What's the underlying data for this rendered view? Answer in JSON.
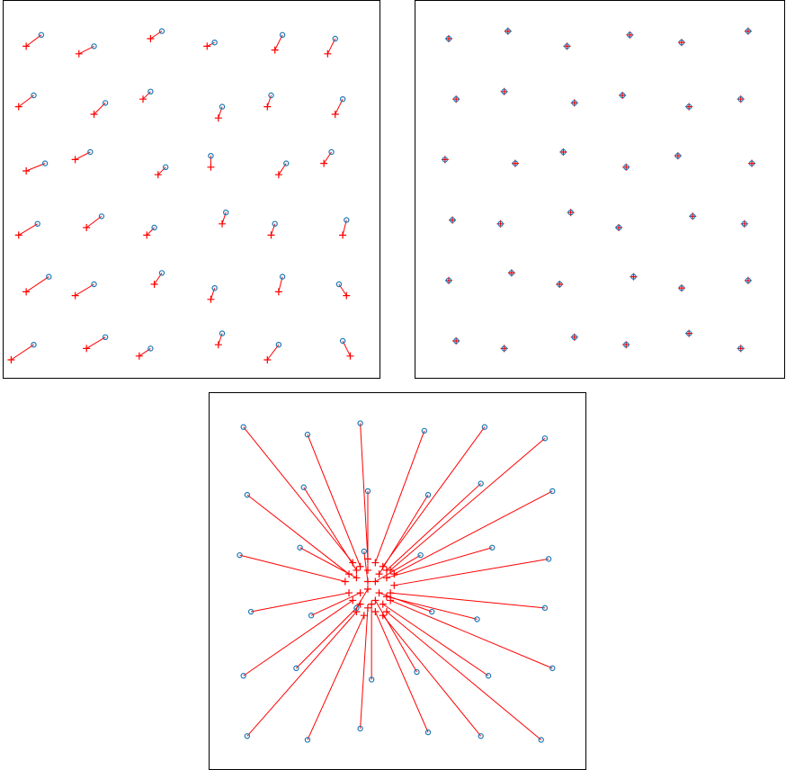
{
  "chart_data": [
    {
      "type": "scatter",
      "xlim": [
        0,
        100
      ],
      "ylim": [
        0,
        100
      ],
      "links": true,
      "series": [
        {
          "color": "#1f77b4",
          "marker": "circle",
          "x": [
            10,
            24,
            42,
            56,
            74,
            88,
            8,
            27,
            39,
            58,
            71,
            90,
            11,
            23,
            43,
            55,
            75,
            87,
            9,
            26,
            40,
            59,
            72,
            91,
            12,
            24,
            42,
            56,
            74,
            89,
            8,
            27,
            39,
            58,
            73,
            90
          ],
          "values": [
            91,
            88,
            92,
            89,
            91,
            90,
            75,
            73,
            76,
            72,
            75,
            74,
            57,
            60,
            56,
            59,
            57,
            60,
            41,
            43,
            40,
            44,
            41,
            42,
            27,
            25,
            28,
            24,
            27,
            25,
            9,
            11,
            8,
            12,
            9,
            10
          ]
        },
        {
          "color": "#ff0000",
          "marker": "plus",
          "x": [
            6,
            20,
            39,
            54,
            72,
            86,
            4,
            24,
            37,
            57,
            70,
            88,
            6,
            19,
            41,
            55,
            73,
            85,
            4,
            22,
            38,
            58,
            71,
            90,
            6,
            19,
            40,
            55,
            73,
            91,
            2,
            22,
            36,
            57,
            70,
            92
          ],
          "values": [
            88,
            86,
            90,
            88,
            87,
            86,
            72,
            70,
            74,
            69,
            72,
            70,
            55,
            58,
            54,
            56,
            54,
            57,
            38,
            40,
            38,
            41,
            38,
            38,
            23,
            22,
            25,
            21,
            23,
            22,
            5,
            8,
            6,
            9,
            5,
            6
          ]
        }
      ]
    },
    {
      "type": "scatter",
      "xlim": [
        0,
        100
      ],
      "ylim": [
        0,
        100
      ],
      "links": true,
      "series": [
        {
          "color": "#1f77b4",
          "marker": "circle",
          "x": [
            9,
            25,
            41,
            58,
            72,
            90,
            11,
            24,
            43,
            56,
            74,
            88,
            8,
            27,
            40,
            57,
            71,
            91,
            10,
            23,
            42,
            55,
            75,
            89,
            9,
            26,
            39,
            59,
            72,
            90,
            11,
            24,
            43,
            57,
            74,
            88
          ],
          "values": [
            90,
            92,
            88,
            91,
            89,
            92,
            74,
            76,
            73,
            75,
            72,
            74,
            58,
            57,
            60,
            56,
            59,
            57,
            42,
            41,
            44,
            40,
            43,
            41,
            26,
            28,
            25,
            27,
            24,
            26,
            10,
            8,
            11,
            9,
            12,
            8
          ]
        },
        {
          "color": "#ff0000",
          "marker": "plus",
          "x": [
            9,
            25,
            41,
            58,
            72,
            90,
            11,
            24,
            43,
            56,
            74,
            88,
            8,
            27,
            40,
            57,
            71,
            91,
            10,
            23,
            42,
            55,
            75,
            89,
            9,
            26,
            39,
            59,
            72,
            90,
            11,
            24,
            43,
            57,
            74,
            88
          ],
          "values": [
            90,
            92,
            88,
            91,
            89,
            92,
            74,
            76,
            73,
            75,
            72,
            74,
            58,
            57,
            60,
            56,
            59,
            57,
            42,
            41,
            44,
            40,
            43,
            41,
            26,
            28,
            25,
            27,
            24,
            26,
            10,
            8,
            11,
            9,
            12,
            8
          ]
        }
      ]
    },
    {
      "type": "scatter",
      "xlim": [
        0,
        100
      ],
      "ylim": [
        0,
        100
      ],
      "links": true,
      "series": [
        {
          "color": "#1f77b4",
          "marker": "circle",
          "x": [
            9,
            26,
            40,
            57,
            73,
            89,
            10,
            25,
            42,
            58,
            72,
            91,
            8,
            24,
            41,
            56,
            75,
            90,
            11,
            27,
            39,
            59,
            71,
            89,
            9,
            23,
            43,
            55,
            74,
            91,
            10,
            26,
            40,
            58,
            72,
            88
          ],
          "values": [
            91,
            89,
            92,
            90,
            91,
            88,
            73,
            75,
            74,
            73,
            76,
            74,
            57,
            59,
            58,
            57,
            59,
            56,
            42,
            41,
            43,
            42,
            40,
            43,
            25,
            27,
            24,
            26,
            25,
            27,
            9,
            8,
            11,
            10,
            9,
            8
          ]
        },
        {
          "color": "#ff0000",
          "marker": "plus",
          "x": [
            38,
            40,
            42,
            44,
            46,
            48,
            37,
            39,
            42,
            45,
            47,
            49,
            36,
            39,
            42,
            44,
            47,
            49,
            37,
            40,
            42,
            45,
            47,
            48,
            38,
            40,
            43,
            44,
            46,
            48,
            39,
            41,
            42,
            44,
            46,
            47
          ],
          "values": [
            55,
            54,
            56,
            55,
            54,
            53,
            52,
            53,
            53,
            52,
            53,
            52,
            50,
            51,
            50,
            50,
            51,
            49,
            47,
            47,
            48,
            47,
            46,
            47,
            45,
            44,
            44,
            45,
            44,
            45,
            42,
            41,
            43,
            42,
            41,
            42
          ]
        }
      ]
    }
  ]
}
